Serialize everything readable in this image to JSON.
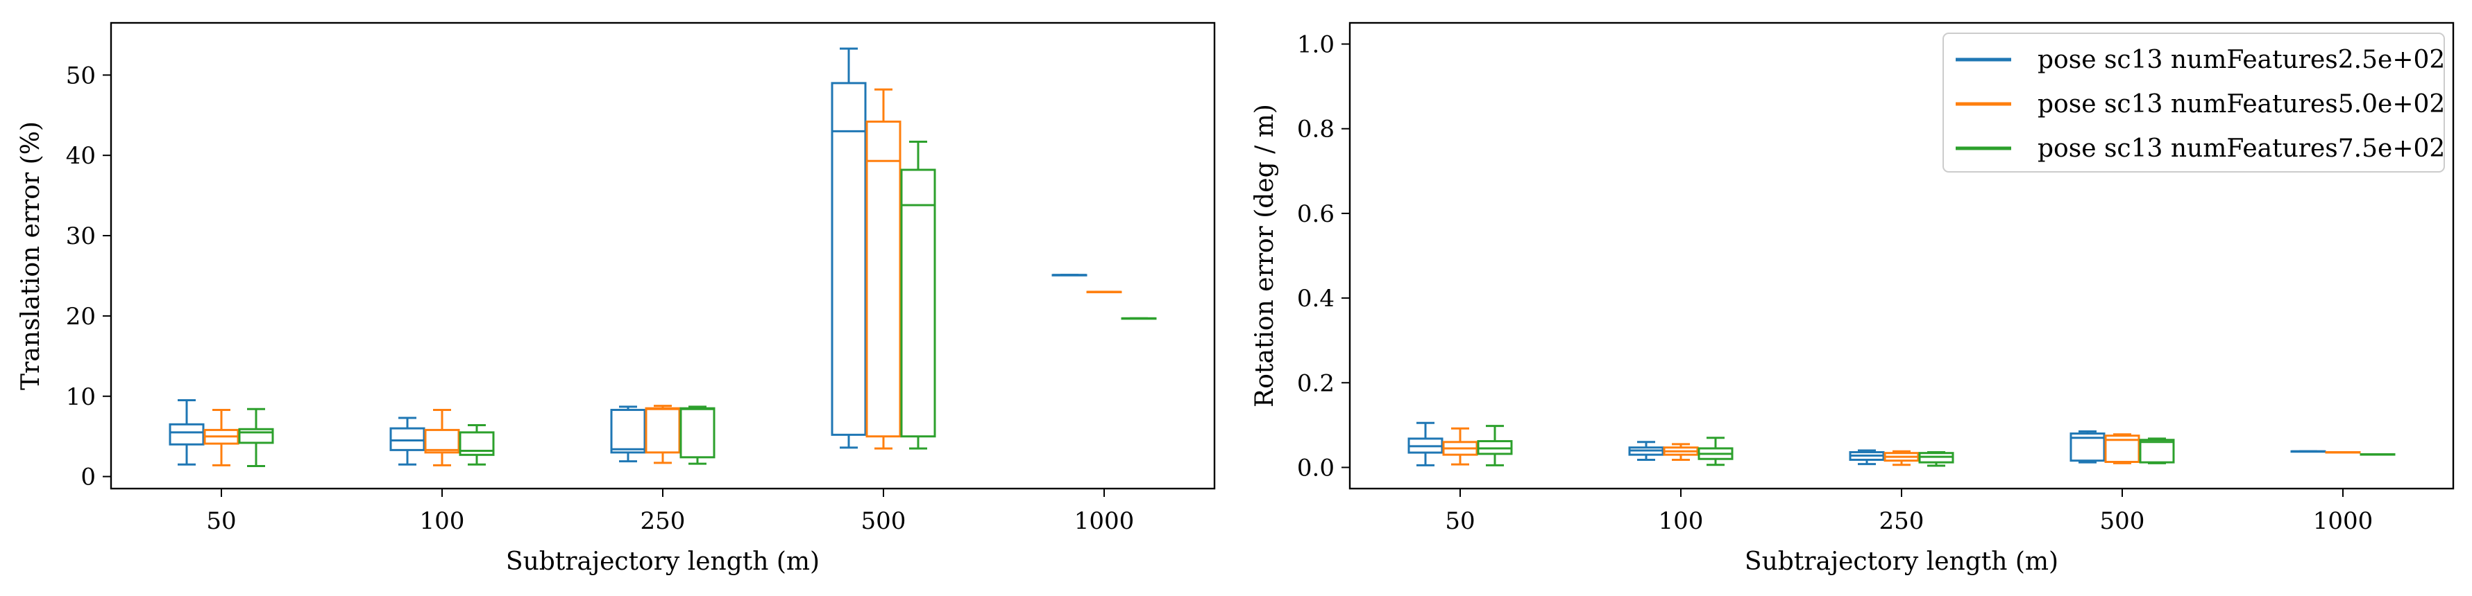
{
  "colors": {
    "series": [
      "#1f77b4",
      "#ff7f0e",
      "#2ca02c"
    ]
  },
  "legend": {
    "placement": "top-right",
    "entries": [
      "pose sc13 numFeatures2.5e+02",
      "pose sc13 numFeatures5.0e+02",
      "pose sc13 numFeatures7.5e+02"
    ]
  },
  "chart_data": [
    {
      "type": "box",
      "xlabel": "Subtrajectory length (m)",
      "ylabel": "Translation error (%)",
      "categories": [
        "50",
        "100",
        "250",
        "500",
        "1000"
      ],
      "ylim": [
        -1.5,
        56.5
      ],
      "yticks": [
        0,
        10,
        20,
        30,
        40,
        50
      ],
      "ytick_labels": [
        "0",
        "10",
        "20",
        "30",
        "40",
        "50"
      ],
      "legend": false,
      "series": [
        {
          "name": "pose sc13 numFeatures2.5e+02",
          "boxes": [
            {
              "min": 1.5,
              "q1": 4.0,
              "median": 5.5,
              "q3": 6.5,
              "max": 9.5
            },
            {
              "min": 1.5,
              "q1": 3.3,
              "median": 4.5,
              "q3": 6.0,
              "max": 7.3
            },
            {
              "min": 1.9,
              "q1": 3.0,
              "median": 3.4,
              "q3": 8.3,
              "max": 8.7
            },
            {
              "min": 3.6,
              "q1": 5.2,
              "median": 43.0,
              "q3": 49.0,
              "max": 53.3
            },
            {
              "min": 25.1,
              "q1": 25.1,
              "median": 25.1,
              "q3": 25.1,
              "max": 25.1
            }
          ]
        },
        {
          "name": "pose sc13 numFeatures5.0e+02",
          "boxes": [
            {
              "min": 1.4,
              "q1": 4.1,
              "median": 5.0,
              "q3": 5.8,
              "max": 8.3
            },
            {
              "min": 1.4,
              "q1": 3.0,
              "median": 3.3,
              "q3": 5.8,
              "max": 8.3
            },
            {
              "min": 1.7,
              "q1": 3.0,
              "median": 8.4,
              "q3": 8.5,
              "max": 8.8
            },
            {
              "min": 3.5,
              "q1": 5.0,
              "median": 39.3,
              "q3": 44.2,
              "max": 48.2
            },
            {
              "min": 23.0,
              "q1": 23.0,
              "median": 23.0,
              "q3": 23.0,
              "max": 23.0
            }
          ]
        },
        {
          "name": "pose sc13 numFeatures7.5e+02",
          "boxes": [
            {
              "min": 1.3,
              "q1": 4.2,
              "median": 5.5,
              "q3": 5.9,
              "max": 8.4
            },
            {
              "min": 1.5,
              "q1": 2.7,
              "median": 3.2,
              "q3": 5.5,
              "max": 6.4
            },
            {
              "min": 1.6,
              "q1": 2.4,
              "median": 8.4,
              "q3": 8.5,
              "max": 8.7
            },
            {
              "min": 3.5,
              "q1": 5.0,
              "median": 33.8,
              "q3": 38.2,
              "max": 41.7
            },
            {
              "min": 19.7,
              "q1": 19.7,
              "median": 19.7,
              "q3": 19.7,
              "max": 19.7
            }
          ]
        }
      ]
    },
    {
      "type": "box",
      "xlabel": "Subtrajectory length (m)",
      "ylabel": "Rotation error (deg / m)",
      "categories": [
        "50",
        "100",
        "250",
        "500",
        "1000"
      ],
      "ylim": [
        -0.05,
        1.05
      ],
      "yticks": [
        0.0,
        0.2,
        0.4,
        0.6,
        0.8,
        1.0
      ],
      "ytick_labels": [
        "0.0",
        "0.2",
        "0.4",
        "0.6",
        "0.8",
        "1.0"
      ],
      "legend": true,
      "series": [
        {
          "name": "pose sc13 numFeatures2.5e+02",
          "boxes": [
            {
              "min": 0.005,
              "q1": 0.035,
              "median": 0.05,
              "q3": 0.068,
              "max": 0.105
            },
            {
              "min": 0.018,
              "q1": 0.03,
              "median": 0.04,
              "q3": 0.047,
              "max": 0.06
            },
            {
              "min": 0.008,
              "q1": 0.018,
              "median": 0.028,
              "q3": 0.036,
              "max": 0.04
            },
            {
              "min": 0.012,
              "q1": 0.016,
              "median": 0.07,
              "q3": 0.08,
              "max": 0.085
            },
            {
              "min": 0.038,
              "q1": 0.038,
              "median": 0.038,
              "q3": 0.038,
              "max": 0.038
            }
          ]
        },
        {
          "name": "pose sc13 numFeatures5.0e+02",
          "boxes": [
            {
              "min": 0.007,
              "q1": 0.03,
              "median": 0.045,
              "q3": 0.06,
              "max": 0.092
            },
            {
              "min": 0.018,
              "q1": 0.03,
              "median": 0.038,
              "q3": 0.047,
              "max": 0.055
            },
            {
              "min": 0.006,
              "q1": 0.016,
              "median": 0.025,
              "q3": 0.034,
              "max": 0.038
            },
            {
              "min": 0.01,
              "q1": 0.013,
              "median": 0.065,
              "q3": 0.075,
              "max": 0.078
            },
            {
              "min": 0.036,
              "q1": 0.036,
              "median": 0.036,
              "q3": 0.036,
              "max": 0.036
            }
          ]
        },
        {
          "name": "pose sc13 numFeatures7.5e+02",
          "boxes": [
            {
              "min": 0.005,
              "q1": 0.032,
              "median": 0.045,
              "q3": 0.062,
              "max": 0.098
            },
            {
              "min": 0.006,
              "q1": 0.02,
              "median": 0.032,
              "q3": 0.045,
              "max": 0.07
            },
            {
              "min": 0.004,
              "q1": 0.012,
              "median": 0.025,
              "q3": 0.034,
              "max": 0.036
            },
            {
              "min": 0.01,
              "q1": 0.012,
              "median": 0.06,
              "q3": 0.065,
              "max": 0.068
            },
            {
              "min": 0.031,
              "q1": 0.031,
              "median": 0.031,
              "q3": 0.031,
              "max": 0.031
            }
          ]
        }
      ]
    }
  ]
}
